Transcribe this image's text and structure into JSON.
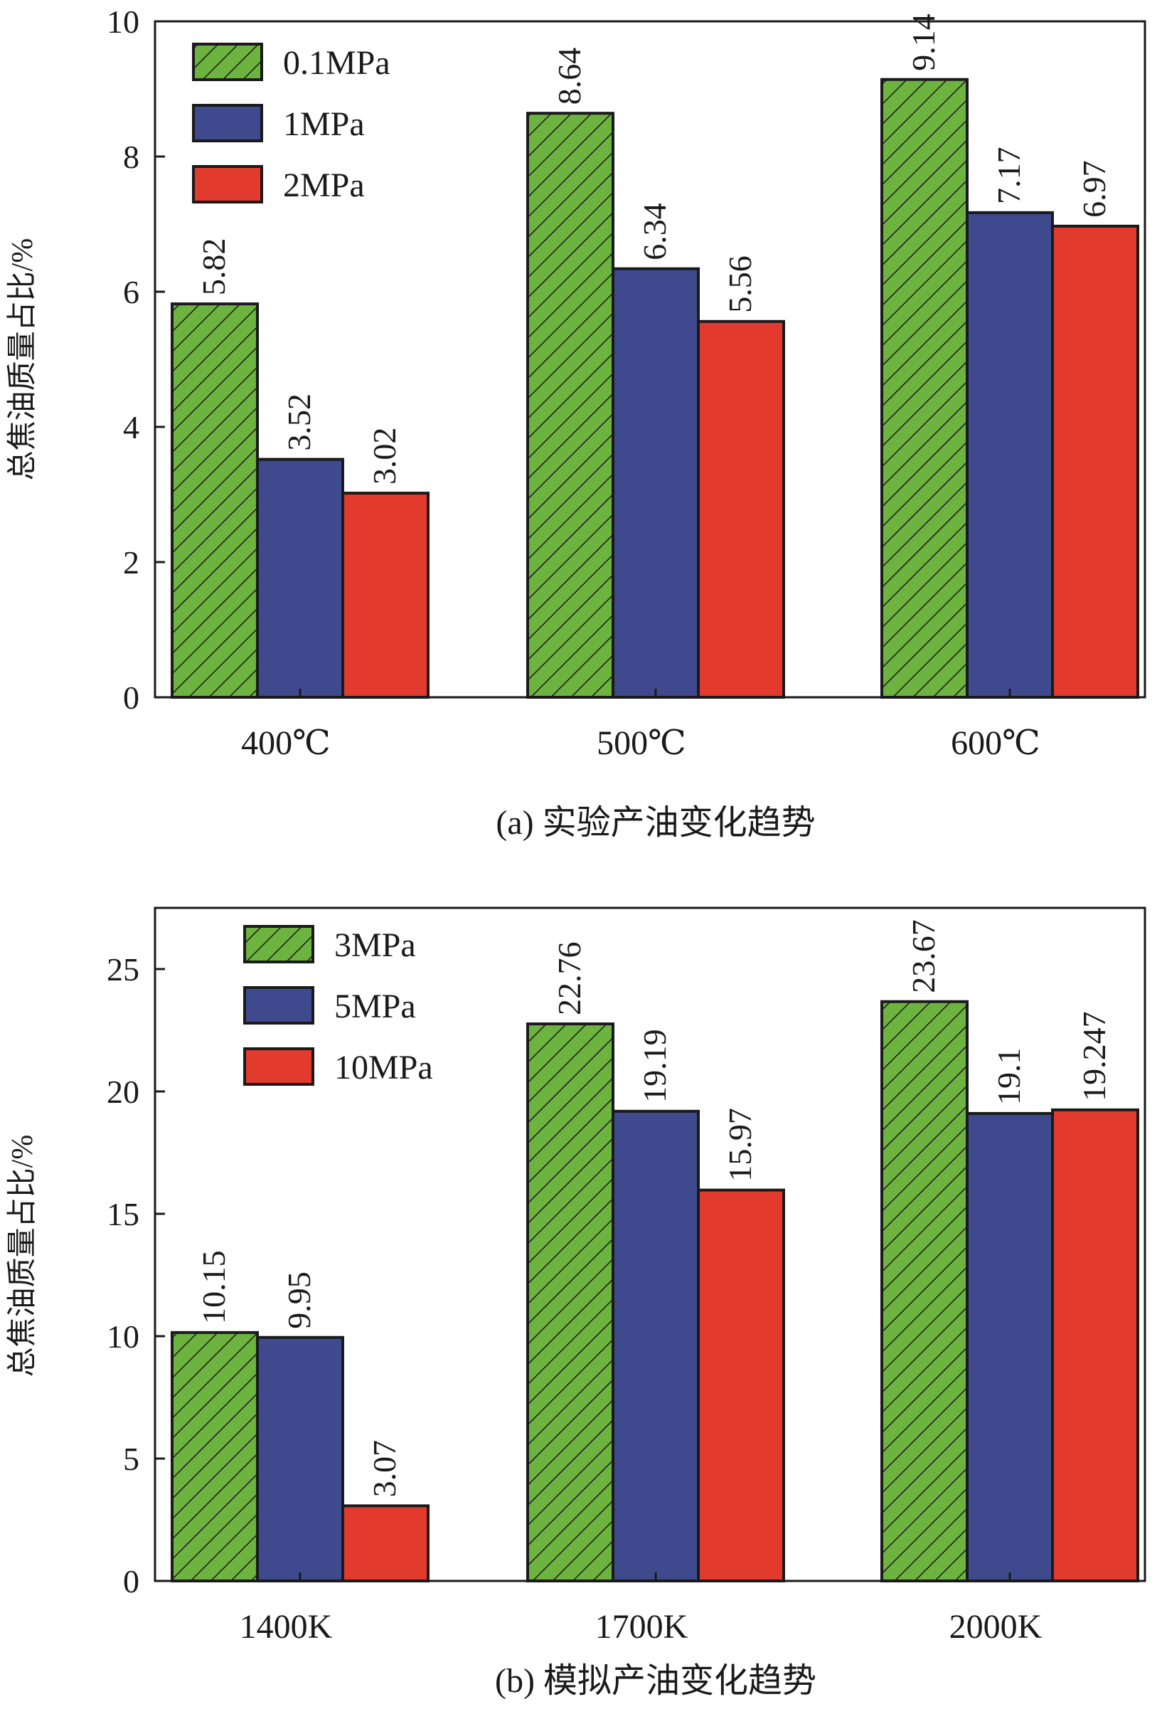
{
  "chart_data": [
    {
      "type": "bar",
      "caption": "(a) 实验产油变化趋势",
      "ylabel": "总焦油质量占比/%",
      "xlabel": "",
      "categories": [
        "400℃",
        "500℃",
        "600℃"
      ],
      "ylim": [
        0,
        10
      ],
      "yticks": [
        0,
        2,
        4,
        6,
        8,
        10
      ],
      "legend_position": "top-left",
      "series": [
        {
          "name": "0.1MPa",
          "values": [
            5.82,
            8.64,
            9.14
          ],
          "labels": [
            "5.82",
            "8.64",
            "9.14"
          ],
          "color": "#6db33f",
          "hatched": true
        },
        {
          "name": "1MPa",
          "values": [
            3.52,
            6.34,
            7.17
          ],
          "labels": [
            "3.52",
            "6.34",
            "7.17"
          ],
          "color": "#3f4a8e",
          "hatched": false
        },
        {
          "name": "2MPa",
          "values": [
            3.02,
            5.56,
            6.97
          ],
          "labels": [
            "3.02",
            "5.56",
            "6.97"
          ],
          "color": "#e33a2e",
          "hatched": false
        }
      ]
    },
    {
      "type": "bar",
      "caption": "(b) 模拟产油变化趋势",
      "ylabel": "总焦油质量占比/%",
      "xlabel": "",
      "categories": [
        "1400K",
        "1700K",
        "2000K"
      ],
      "ylim": [
        0,
        27.5
      ],
      "yticks": [
        0,
        5,
        10,
        15,
        20,
        25
      ],
      "legend_position": "top-left",
      "series": [
        {
          "name": "3MPa",
          "values": [
            10.15,
            22.76,
            23.67
          ],
          "labels": [
            "10.15",
            "22.76",
            "23.67"
          ],
          "color": "#6db33f",
          "hatched": true
        },
        {
          "name": "5MPa",
          "values": [
            9.95,
            19.19,
            19.1
          ],
          "labels": [
            "9.95",
            "19.19",
            "19.1"
          ],
          "color": "#3f4a8e",
          "hatched": false
        },
        {
          "name": "10MPa",
          "values": [
            3.07,
            15.97,
            19.247
          ],
          "labels": [
            "3.07",
            "15.97",
            "19.247"
          ],
          "color": "#e33a2e",
          "hatched": false
        }
      ]
    }
  ]
}
